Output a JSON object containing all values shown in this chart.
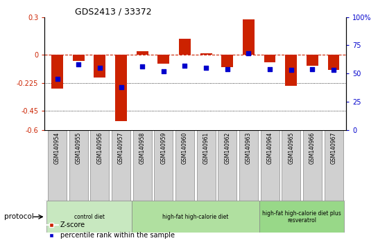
{
  "title": "GDS2413 / 33372",
  "samples": [
    "GSM140954",
    "GSM140955",
    "GSM140956",
    "GSM140957",
    "GSM140958",
    "GSM140959",
    "GSM140960",
    "GSM140961",
    "GSM140962",
    "GSM140963",
    "GSM140964",
    "GSM140965",
    "GSM140966",
    "GSM140967"
  ],
  "zscore": [
    -0.27,
    -0.05,
    -0.18,
    -0.53,
    0.03,
    -0.07,
    0.13,
    0.01,
    -0.1,
    0.28,
    -0.06,
    -0.25,
    -0.09,
    -0.12
  ],
  "percentile": [
    45,
    58,
    55,
    38,
    56,
    52,
    57,
    55,
    54,
    68,
    54,
    53,
    54,
    53
  ],
  "ylim": [
    -0.6,
    0.3
  ],
  "yticks_left": [
    -0.6,
    -0.45,
    -0.225,
    0.0,
    0.3
  ],
  "ytick_labels_left": [
    "-0.6",
    "-0.45",
    "-0.225",
    "0",
    "0.3"
  ],
  "yticks_right": [
    0,
    25,
    50,
    75,
    100
  ],
  "ytick_labels_right": [
    "0",
    "25",
    "50",
    "75",
    "100%"
  ],
  "hlines": [
    -0.225,
    -0.45
  ],
  "bar_color": "#cc2200",
  "dot_color": "#0000cc",
  "ref_line_color": "#cc2200",
  "groups": [
    {
      "label": "control diet",
      "start": 0,
      "end": 4,
      "color": "#c8e8c0"
    },
    {
      "label": "high-fat high-calorie diet",
      "start": 4,
      "end": 10,
      "color": "#b0e0a0"
    },
    {
      "label": "high-fat high-calorie diet plus\nresveratrol",
      "start": 10,
      "end": 14,
      "color": "#98d888"
    }
  ],
  "protocol_label": "protocol",
  "legend_zscore": "Z-score",
  "legend_percentile": "percentile rank within the sample",
  "bar_width": 0.55,
  "sample_box_color": "#d0d0d0",
  "sample_box_edge": "#888888"
}
